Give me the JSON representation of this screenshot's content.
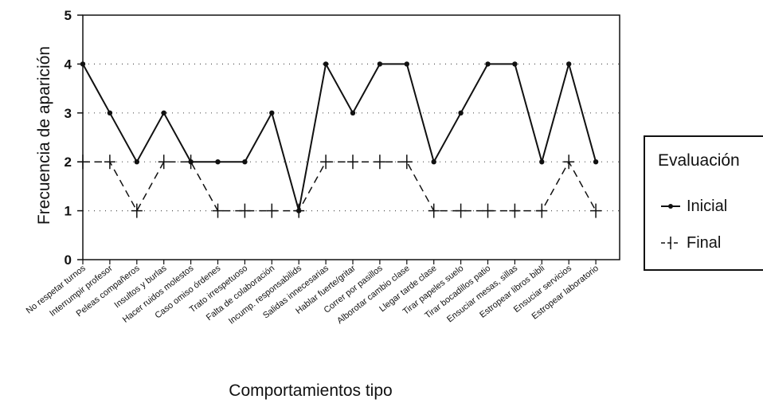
{
  "chart_data": {
    "type": "line",
    "title": "",
    "xlabel": "Comportamientos  tipo",
    "ylabel": "Frecuencia de aparición",
    "ylim": [
      0,
      5
    ],
    "yticks": [
      "0",
      "1",
      "2",
      "3",
      "4",
      "5"
    ],
    "grid": "horizontal dotted",
    "legend_position": "right",
    "categories": [
      "No respetar turnos",
      "Interrumpir profesor",
      "Peleas compañeros",
      "Insultos y burlas",
      "Hacer ruidos molestos",
      "Caso omiso órdenes",
      "Trato irrespetuoso",
      "Falta de colaboración",
      "Incump. responsabilids",
      "Salidas innecesarias",
      "Hablar fuerte/gritar",
      "Correr por pasillos",
      "Alborotar cambio clase",
      "Llegar tarde clase",
      "Tirar papeles suelo",
      "Tirar bocadillos patio",
      "Ensuciar mesas, sillas",
      "Estropear libros bibli",
      "Ensuciar servicios",
      "Estropear laboratorio"
    ],
    "series": [
      {
        "name": "Inicial",
        "style": "solid-dot",
        "color": "#111111",
        "values": [
          4,
          3,
          2,
          3,
          2,
          2,
          2,
          3,
          1,
          4,
          3,
          4,
          4,
          2,
          3,
          4,
          4,
          2,
          4,
          2
        ]
      },
      {
        "name": "Final",
        "style": "dashed-plus",
        "color": "#111111",
        "values": [
          2,
          2,
          1,
          2,
          2,
          1,
          1,
          1,
          1,
          2,
          2,
          2,
          2,
          1,
          1,
          1,
          1,
          1,
          2,
          1
        ]
      }
    ]
  },
  "legend": {
    "title": "Evaluación"
  }
}
